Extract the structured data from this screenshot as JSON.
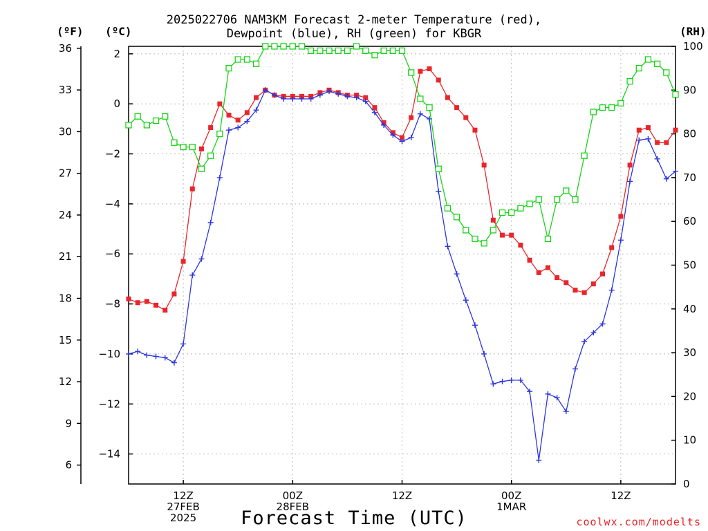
{
  "title_line1": "2025022706 NAM3KM Forecast 2-meter Temperature (red),",
  "title_line2": "Dewpoint (blue), RH (green) for KBGR",
  "unit_f": "(ºF)",
  "unit_c": "(ºC)",
  "unit_rh": "(RH)",
  "xlabel": "Forecast Time (UTC)",
  "credit": "coolwx.com/modelts",
  "colors": {
    "temperature": "#e8262b",
    "dewpoint": "#2b35e0",
    "rh": "#18d318",
    "grid": "#b9b9b9"
  },
  "chart_data": {
    "type": "line",
    "x_unit": "forecast hour from 2025-02-27 06Z",
    "xlim": [
      0,
      60
    ],
    "x_ticks": [
      {
        "hour": 6,
        "lines": [
          "12Z",
          "27FEB",
          "2025"
        ]
      },
      {
        "hour": 18,
        "lines": [
          "00Z",
          "28FEB"
        ]
      },
      {
        "hour": 30,
        "lines": [
          "12Z"
        ]
      },
      {
        "hour": 42,
        "lines": [
          "00Z",
          "1MAR"
        ]
      },
      {
        "hour": 54,
        "lines": [
          "12Z"
        ]
      }
    ],
    "y_left_c": {
      "label": "(ºC)",
      "lim": [
        -15.2,
        2.3
      ],
      "ticks": [
        "2",
        "0",
        "−2",
        "−4",
        "−6",
        "−8",
        "−10",
        "−12",
        "−14"
      ],
      "tick_values": [
        2,
        0,
        -2,
        -4,
        -6,
        -8,
        -10,
        -12,
        -14
      ]
    },
    "y_left_f": {
      "label": "(ºF)",
      "ticks": [
        "36",
        "33",
        "30",
        "27",
        "24",
        "21",
        "18",
        "15",
        "12",
        "9",
        "6"
      ],
      "tick_values": [
        36,
        33,
        30,
        27,
        24,
        21,
        18,
        15,
        12,
        9,
        6
      ]
    },
    "y_right_rh": {
      "label": "(RH)",
      "lim": [
        0,
        100
      ],
      "ticks": [
        "100",
        "90",
        "80",
        "70",
        "60",
        "50",
        "40",
        "30",
        "20",
        "10",
        "0"
      ],
      "tick_values": [
        100,
        90,
        80,
        70,
        60,
        50,
        40,
        30,
        20,
        10,
        0
      ]
    },
    "x": [
      0,
      1,
      2,
      3,
      4,
      5,
      6,
      7,
      8,
      9,
      10,
      11,
      12,
      13,
      14,
      15,
      16,
      17,
      18,
      19,
      20,
      21,
      22,
      23,
      24,
      25,
      26,
      27,
      28,
      29,
      30,
      31,
      32,
      33,
      34,
      35,
      36,
      37,
      38,
      39,
      40,
      41,
      42,
      43,
      44,
      45,
      46,
      47,
      48,
      49,
      50,
      51,
      52,
      53,
      54,
      55,
      56,
      57,
      58,
      59,
      60
    ],
    "series": [
      {
        "name": "Temperature",
        "axis": "celsius",
        "marker": "filled-square",
        "values": [
          -7.8,
          -7.95,
          -7.9,
          -8.05,
          -8.25,
          -7.6,
          -6.3,
          -3.4,
          -1.8,
          -0.95,
          0.0,
          -0.45,
          -0.65,
          -0.35,
          0.25,
          0.55,
          0.35,
          0.3,
          0.3,
          0.3,
          0.3,
          0.45,
          0.55,
          0.45,
          0.35,
          0.35,
          0.25,
          -0.15,
          -0.75,
          -1.15,
          -1.35,
          -0.55,
          1.3,
          1.4,
          0.95,
          0.25,
          -0.15,
          -0.55,
          -1.05,
          -2.45,
          -4.65,
          -5.25,
          -5.25,
          -5.65,
          -6.25,
          -6.75,
          -6.55,
          -6.95,
          -7.15,
          -7.45,
          -7.55,
          -7.2,
          -6.8,
          -5.75,
          -4.5,
          -2.45,
          -1.05,
          -0.95,
          -1.55,
          -1.55,
          -1.05
        ]
      },
      {
        "name": "Dewpoint",
        "axis": "celsius",
        "marker": "plus",
        "values": [
          -10.0,
          -9.9,
          -10.05,
          -10.1,
          -10.15,
          -10.35,
          -9.6,
          -6.85,
          -6.2,
          -4.75,
          -2.95,
          -1.05,
          -0.95,
          -0.7,
          -0.25,
          0.55,
          0.35,
          0.2,
          0.2,
          0.2,
          0.2,
          0.35,
          0.5,
          0.4,
          0.3,
          0.25,
          0.1,
          -0.35,
          -0.85,
          -1.25,
          -1.5,
          -1.35,
          -0.4,
          -0.6,
          -3.5,
          -5.7,
          -6.8,
          -7.85,
          -8.85,
          -10.0,
          -11.2,
          -11.1,
          -11.05,
          -11.05,
          -11.5,
          -14.25,
          -11.6,
          -11.75,
          -12.3,
          -10.6,
          -9.5,
          -9.15,
          -8.8,
          -7.45,
          -5.45,
          -3.1,
          -1.45,
          -1.4,
          -2.2,
          -3.0,
          -2.7
        ]
      },
      {
        "name": "RH",
        "axis": "rh",
        "marker": "open-square",
        "values": [
          82,
          84,
          82,
          83,
          84,
          78,
          77,
          77,
          72,
          75,
          80,
          95,
          97,
          97,
          96,
          100,
          100,
          100,
          100,
          100,
          99,
          99,
          99,
          99,
          99,
          100,
          99,
          98,
          99,
          99,
          99,
          94,
          88,
          86,
          72,
          63,
          61,
          58,
          56,
          55,
          58,
          62,
          62,
          63,
          64,
          65,
          56,
          65,
          67,
          65,
          75,
          85,
          86,
          86,
          87,
          92,
          95,
          97,
          96,
          94,
          89
        ]
      }
    ]
  }
}
